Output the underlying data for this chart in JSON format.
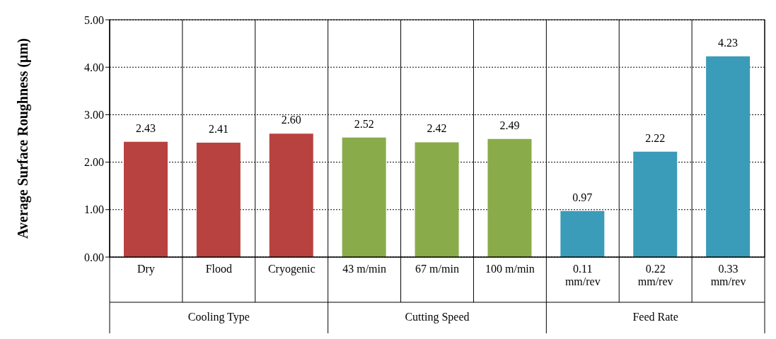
{
  "chart_data": {
    "type": "bar",
    "ylabel": "Average Surface Roughness (µm)",
    "categories": [
      "Dry",
      "Flood",
      "Cryogenic",
      "43 m/min",
      "67 m/min",
      "100 m/min",
      "0.11 mm/rev",
      "0.22 mm/rev",
      "0.33 mm/rev"
    ],
    "values": [
      2.43,
      2.41,
      2.6,
      2.52,
      2.42,
      2.49,
      0.97,
      2.22,
      4.23
    ],
    "value_labels": [
      "2.43",
      "2.41",
      "2.60",
      "2.52",
      "2.42",
      "2.49",
      "0.97",
      "2.22",
      "4.23"
    ],
    "colors": [
      "#b8423f",
      "#b8423f",
      "#b8423f",
      "#8aab4a",
      "#8aab4a",
      "#8aab4a",
      "#3a9cb8",
      "#3a9cb8",
      "#3a9cb8"
    ],
    "annotations": [
      "Cooling Type",
      "Cutting Speed",
      "Feed Rate"
    ],
    "ylim": [
      0,
      5
    ],
    "yticks": [
      {
        "value": 0,
        "label": "0.00"
      },
      {
        "value": 1,
        "label": "1.00"
      },
      {
        "value": 2,
        "label": "2.00"
      },
      {
        "value": 3,
        "label": "3.00"
      },
      {
        "value": 4,
        "label": "4.00"
      },
      {
        "value": 5,
        "label": "5.00"
      }
    ],
    "grid": "y",
    "legend": false
  }
}
